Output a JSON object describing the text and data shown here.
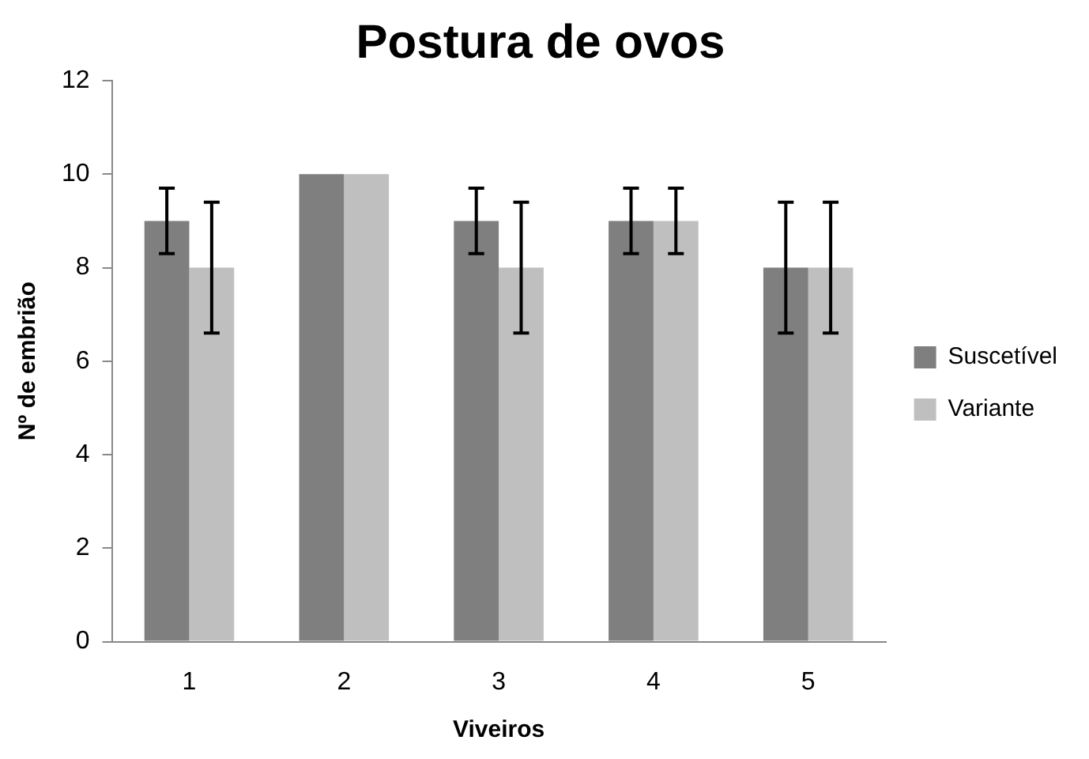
{
  "chart_data": {
    "type": "bar",
    "title": "Postura de ovos",
    "xlabel": "Viveiros",
    "ylabel": "Nº de embrião",
    "categories": [
      "1",
      "2",
      "3",
      "4",
      "5"
    ],
    "series": [
      {
        "name": "Suscetível",
        "color": "#7f7f7f",
        "values": [
          9,
          10,
          9,
          9,
          8
        ],
        "errors": [
          0.7,
          null,
          0.7,
          0.7,
          1.4
        ]
      },
      {
        "name": "Variante",
        "color": "#bfbfbf",
        "values": [
          8,
          10,
          8,
          9,
          8
        ],
        "errors": [
          1.4,
          null,
          1.4,
          0.7,
          1.4
        ]
      }
    ],
    "ylim": [
      0,
      12
    ],
    "yticks": [
      0,
      2,
      4,
      6,
      8,
      10,
      12
    ],
    "grid": false,
    "legend": "right"
  }
}
